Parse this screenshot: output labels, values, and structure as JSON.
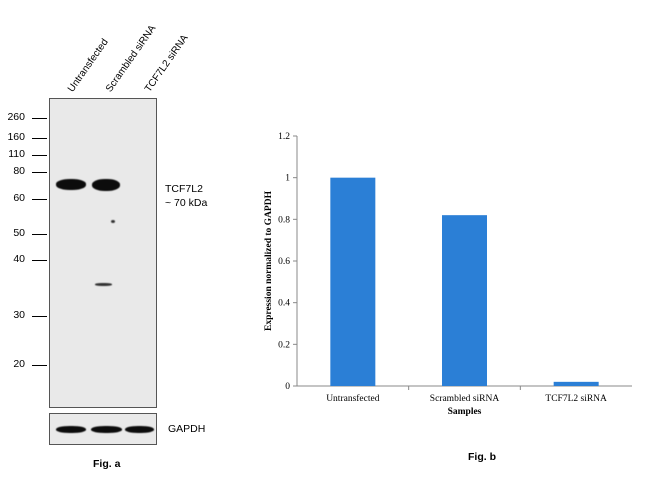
{
  "fig_a": {
    "lanes": [
      "Untransfected",
      "Scrambled siRNA",
      "TCF7L2 siRNA"
    ],
    "markers": [
      "260",
      "160",
      "110",
      "80",
      "60",
      "50",
      "40",
      "30",
      "20"
    ],
    "target_label_line1": "TCF7L2",
    "target_label_line2": "~ 70 kDa",
    "loading_control_label": "GAPDH",
    "caption": "Fig. a"
  },
  "fig_b": {
    "caption": "Fig. b"
  },
  "chart_data": {
    "type": "bar",
    "categories": [
      "Untransfected",
      "Scrambled siRNA",
      "TCF7L2 siRNA"
    ],
    "values": [
      1.0,
      0.82,
      0.02
    ],
    "xlabel": "Samples",
    "ylabel": "Expression normalized to GAPDH",
    "ylim": [
      0,
      1.2
    ],
    "yticks": [
      "0",
      "0.2",
      "0.4",
      "0.6",
      "0.8",
      "1",
      "1.2"
    ],
    "bar_color": "#2b7fd6",
    "grid": false,
    "legend": "none"
  }
}
